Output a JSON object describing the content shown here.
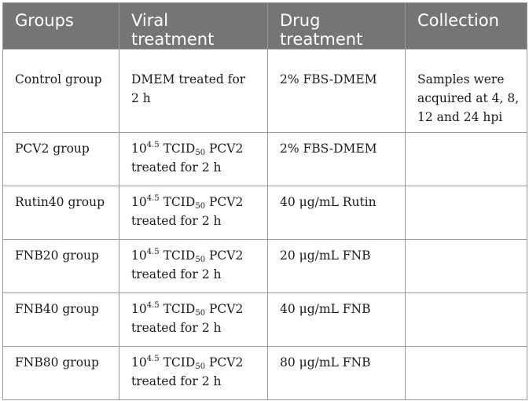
{
  "table": {
    "headers": [
      [
        "Groups"
      ],
      [
        "Viral",
        "treatment"
      ],
      [
        "Drug",
        "treatment"
      ],
      [
        "Collection"
      ]
    ],
    "viral_template": {
      "base": "10",
      "exponent": "4.5",
      "tcid": "TCID",
      "tcid_sub": "50",
      "virus": "PCV2",
      "duration": "treated for 2 h"
    },
    "rows": [
      {
        "group": "Control group",
        "viral_lines": [
          "DMEM treated for",
          "2 h"
        ],
        "drug": "2% FBS-DMEM",
        "collection_lines": [
          "Samples were",
          "acquired at 4, 8,",
          "12 and 24 hpi"
        ]
      },
      {
        "group": "PCV2 group",
        "drug": "2% FBS-DMEM"
      },
      {
        "group": "Rutin40 group",
        "drug": "40 μg/mL Rutin"
      },
      {
        "group": "FNB20 group",
        "drug": "20 μg/mL FNB"
      },
      {
        "group": "FNB40 group",
        "drug": "40 μg/mL FNB"
      },
      {
        "group": "FNB80 group",
        "drug": "80 μg/mL FNB"
      }
    ]
  }
}
